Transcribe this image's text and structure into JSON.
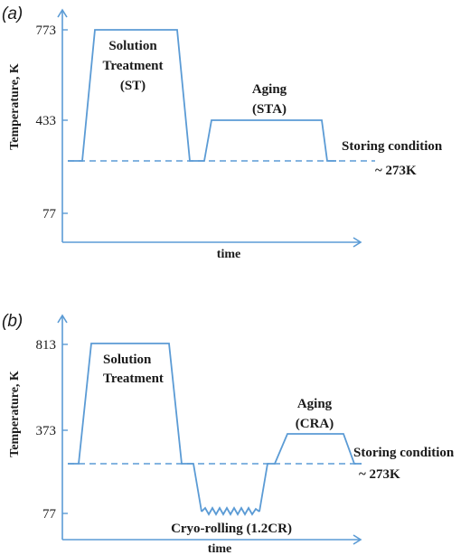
{
  "panel_a": {
    "label": "(a)",
    "ylabel": "Temperature, K",
    "xlabel": "time",
    "ticks": [
      "773",
      "433",
      "77"
    ],
    "annotations": {
      "solution": [
        "Solution",
        "Treatment",
        "(ST)"
      ],
      "aging": [
        "Aging",
        "(STA)"
      ],
      "storing": "Storing condition",
      "storing_temp": "~ 273K"
    }
  },
  "panel_b": {
    "label": "(b)",
    "ylabel": "Temperature, K",
    "xlabel": "time",
    "ticks": [
      "813",
      "373",
      "77"
    ],
    "annotations": {
      "solution": [
        "Solution",
        "Treatment"
      ],
      "aging": [
        "Aging",
        "(CRA)"
      ],
      "cryo": "Cryo-rolling (1.2CR)",
      "storing": "Storing condition",
      "storing_temp": "~ 273K"
    }
  },
  "colors": {
    "line": "#5b9bd5",
    "text": "#1a1a1a"
  }
}
